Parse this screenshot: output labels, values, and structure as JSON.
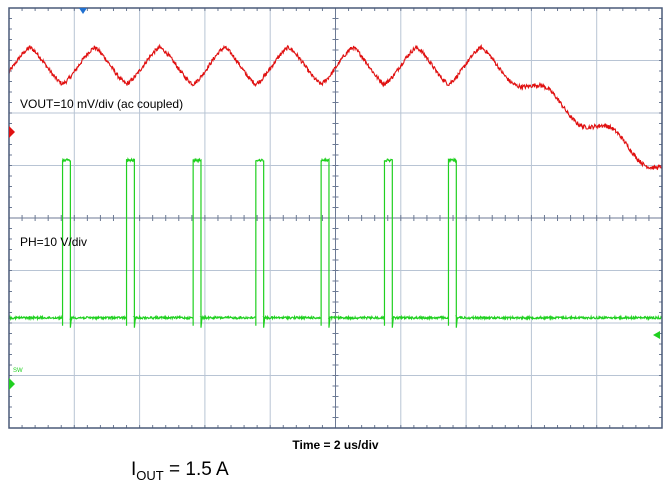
{
  "chart_data": {
    "type": "line",
    "title": "",
    "xlabel": "Time = 2 us/div",
    "ylabel": "",
    "x_divisions": 10,
    "y_divisions": 8,
    "series": [
      {
        "name": "VOUT=10 mV/div (ac coupled)",
        "color": "#e01010",
        "coupling": "ac",
        "scale": "10 mV/div",
        "center_offset_div": 2.9,
        "shape": "triangular ripple",
        "period_div": 1.0,
        "amplitude_pk_pk_mV": 7,
        "minima_div": [
          0.82,
          1.8,
          2.82,
          3.78,
          4.78,
          5.75,
          6.73
        ],
        "noise_mV": 0.5
      },
      {
        "name": "PH=10 V/div",
        "color": "#20d020",
        "scale": "10 V/div",
        "zero_marker_label": "SW",
        "low_level_div": -1.9,
        "high_level_div": 1.1,
        "pulse_starts_div": [
          0.82,
          1.8,
          2.82,
          3.78,
          4.78,
          5.75,
          6.73
        ],
        "pulse_width_div": 0.12,
        "period_div": 1.0
      }
    ]
  },
  "annotations": {
    "vout_label": "VOUT=10 mV/div (ac coupled)",
    "ph_label": "PH=10 V/div",
    "ground_marker": "SW",
    "time_label": "Time = 2 us/div",
    "iout_prefix": "I",
    "iout_sub": "OUT",
    "iout_value": " = 1.5 A"
  },
  "colors": {
    "grid": "#b8c4d4",
    "frame": "#4a5a78",
    "vout_trace": "#e01010",
    "ph_trace": "#20d020",
    "trigger_marker": "#2070d0"
  }
}
